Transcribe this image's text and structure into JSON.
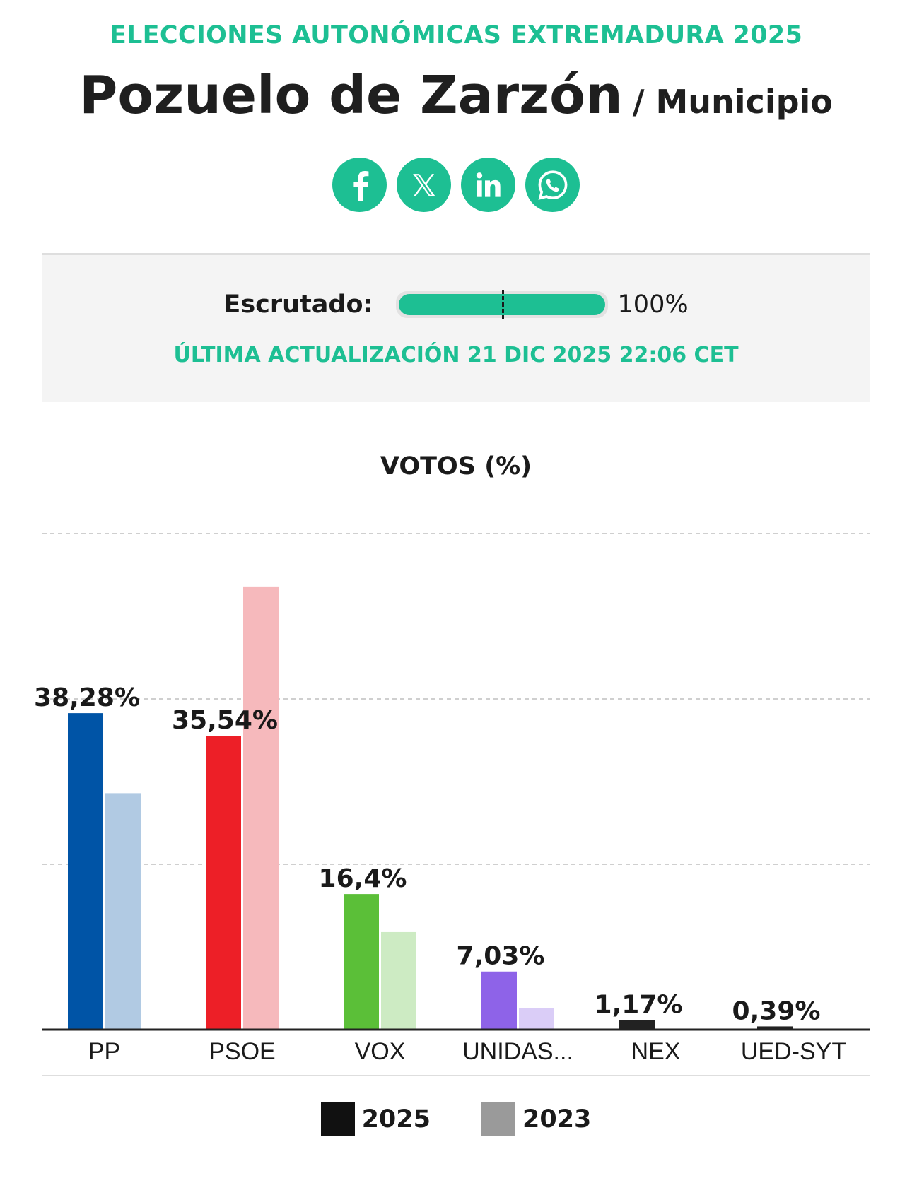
{
  "header": {
    "kicker": "ELECCIONES AUTONÓMICAS EXTREMADURA 2025",
    "title": "Pozuelo de Zarzón",
    "subtitle": "/ Municipio"
  },
  "share": {
    "color": "#1dbf93",
    "buttons": [
      {
        "icon": "facebook-icon"
      },
      {
        "icon": "x-icon"
      },
      {
        "icon": "linkedin-icon"
      },
      {
        "icon": "whatsapp-icon"
      }
    ]
  },
  "scrutiny": {
    "label": "Escrutado:",
    "value_text": "100%",
    "progress_percent": 100,
    "updated": "ÚLTIMA ACTUALIZACIÓN 21 DIC 2025 22:06 CET"
  },
  "chart_data": {
    "type": "bar",
    "title": "VOTOS (%)",
    "categories": [
      "PP",
      "PSOE",
      "VOX",
      "UNIDAS...",
      "NEX",
      "UED-SYT"
    ],
    "series": [
      {
        "name": "2025",
        "values": [
          38.28,
          35.54,
          16.4,
          7.03,
          1.17,
          0.39
        ],
        "labels": [
          "38,28%",
          "35,54%",
          "16,4%",
          "7,03%",
          "1,17%",
          "0,39%"
        ],
        "colors": [
          "#0054a6",
          "#ed1f27",
          "#5bbf38",
          "#8e63e8",
          "#222222",
          "#222222"
        ]
      },
      {
        "name": "2023",
        "values": [
          28.6,
          53.6,
          11.8,
          2.6,
          0,
          0
        ],
        "colors": [
          "#b1cae3",
          "#f6b9bc",
          "#cdebc3",
          "#dacdf7",
          "#cccccc",
          "#cccccc"
        ]
      }
    ],
    "ylim": [
      0,
      60
    ],
    "gridlines": [
      20,
      40,
      60
    ],
    "grid": true,
    "legend_position": "bottom",
    "legend": [
      {
        "label": "2025",
        "color": "#111111"
      },
      {
        "label": "2023",
        "color": "#9a9a9a"
      }
    ]
  }
}
